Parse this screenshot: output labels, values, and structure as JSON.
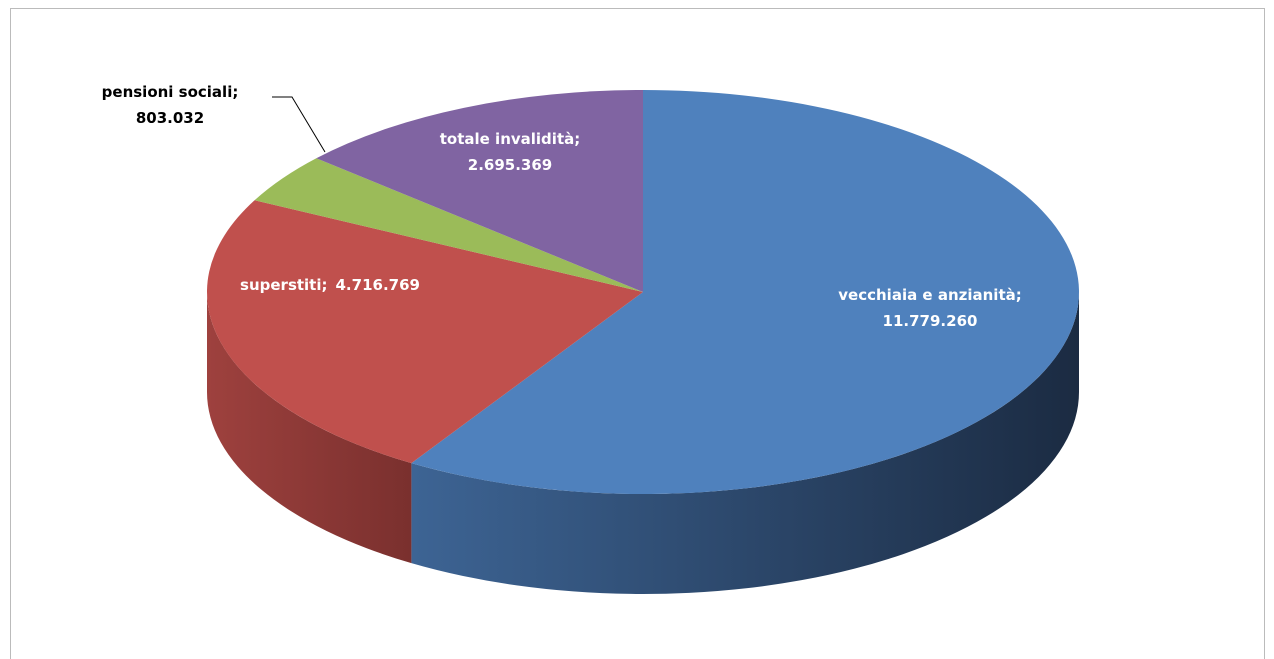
{
  "chart_data": {
    "type": "pie3d",
    "categories": [
      "vecchiaia e anzianità",
      "superstiti",
      "pensioni sociali",
      "totale invalidità"
    ],
    "values": [
      11779260,
      4716769,
      803032,
      2695369
    ],
    "value_labels": [
      "11.779.260",
      "4.716.769",
      "803.032",
      "2.695.369"
    ],
    "label_separator": ";",
    "colors": [
      "#4f81bd",
      "#c0504d",
      "#9bbb59",
      "#8064a2"
    ],
    "side_colors": [
      [
        "#3d6494",
        "#1b2b42"
      ],
      [
        "#9e413e",
        "#7a302e"
      ],
      [
        "#7e9a46",
        "#5f7434"
      ],
      [
        "#665085",
        "#4c3c63"
      ]
    ]
  }
}
